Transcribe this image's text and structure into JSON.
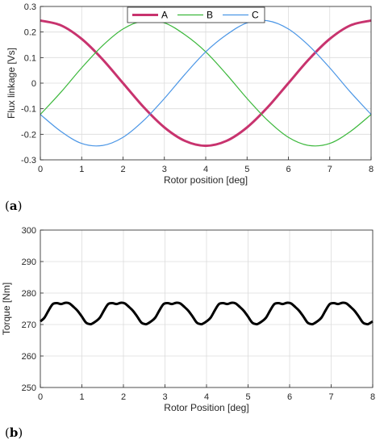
{
  "panels": {
    "a": "a",
    "b": "b"
  },
  "chart_data": [
    {
      "type": "line",
      "xlabel": "Rotor position [deg]",
      "ylabel": "Flux linkage [Vs]",
      "xlim": [
        0,
        8
      ],
      "ylim": [
        -0.3,
        0.3
      ],
      "xticks": [
        "0",
        "1",
        "2",
        "3",
        "4",
        "5",
        "6",
        "7",
        "8"
      ],
      "yticks": [
        "-0.3",
        "-0.2",
        "-0.1",
        "0",
        "0.1",
        "0.2",
        "0.3"
      ],
      "grid": true,
      "legend": "top-center",
      "series": [
        {
          "name": "A",
          "color": "#c8336e",
          "x": [
            0,
            0.5,
            1,
            1.5,
            2,
            2.5,
            3,
            3.5,
            4,
            4.5,
            5,
            5.5,
            6,
            6.5,
            7,
            7.5,
            8
          ],
          "values": [
            0.245,
            0.226,
            0.173,
            0.094,
            0.0,
            -0.094,
            -0.173,
            -0.226,
            -0.245,
            -0.226,
            -0.173,
            -0.094,
            0.0,
            0.094,
            0.173,
            0.226,
            0.245
          ]
        },
        {
          "name": "B",
          "color": "#3cb83c",
          "x": [
            0,
            0.5,
            1,
            1.5,
            2,
            2.5,
            3,
            3.5,
            4,
            4.5,
            5,
            5.5,
            6,
            6.5,
            7,
            7.5,
            8
          ],
          "values": [
            -0.1225,
            -0.035,
            0.06,
            0.146,
            0.212,
            0.244,
            0.236,
            0.189,
            0.1225,
            0.035,
            -0.06,
            -0.146,
            -0.212,
            -0.244,
            -0.236,
            -0.189,
            -0.1225
          ]
        },
        {
          "name": "C",
          "color": "#4b96e6",
          "x": [
            0,
            0.5,
            1,
            1.5,
            2,
            2.5,
            3,
            3.5,
            4,
            4.5,
            5,
            5.5,
            6,
            6.5,
            7,
            7.5,
            8
          ],
          "values": [
            -0.1225,
            -0.189,
            -0.236,
            -0.244,
            -0.212,
            -0.146,
            -0.06,
            0.035,
            0.1225,
            0.189,
            0.236,
            0.244,
            0.212,
            0.146,
            0.06,
            -0.035,
            -0.1225
          ]
        }
      ]
    },
    {
      "type": "line",
      "xlabel": "Rotor Position [deg]",
      "ylabel": "Torque [Nm]",
      "xlim": [
        0,
        8
      ],
      "ylim": [
        250,
        300
      ],
      "xticks": [
        "0",
        "1",
        "2",
        "3",
        "4",
        "5",
        "6",
        "7",
        "8"
      ],
      "yticks": [
        "250",
        "260",
        "270",
        "280",
        "290",
        "300"
      ],
      "grid": true,
      "series": [
        {
          "color": "#000000",
          "x": [
            0,
            0.1,
            0.2,
            0.3,
            0.4,
            0.5,
            0.6,
            0.7,
            0.8,
            0.9,
            1.0,
            1.1,
            1.2,
            1.25,
            1.3333
          ],
          "values": [
            271.0,
            272.2,
            274.5,
            276.5,
            276.8,
            276.5,
            276.9,
            276.7,
            275.6,
            274.3,
            272.5,
            270.6,
            270.1,
            270.3,
            271.0
          ],
          "period": 1.3333
        }
      ]
    }
  ]
}
